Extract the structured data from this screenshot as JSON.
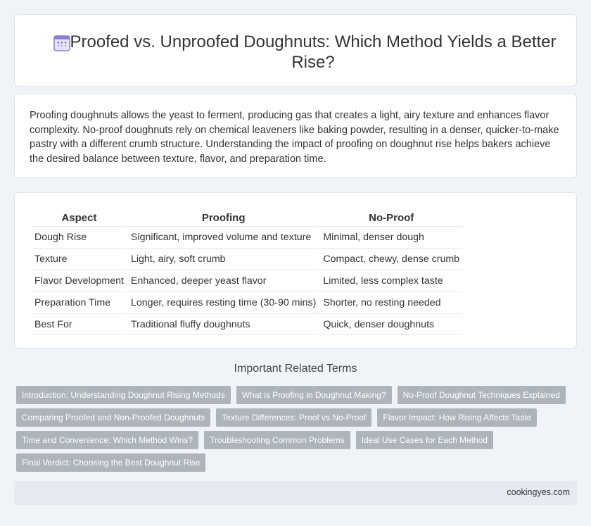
{
  "header": {
    "title": "Proofed vs. Unproofed Doughnuts: Which Method Yields a Better Rise?",
    "icon": "calendar-icon"
  },
  "intro": {
    "text": "Proofing doughnuts allows the yeast to ferment, producing gas that creates a light, airy texture and enhances flavor complexity. No-proof doughnuts rely on chemical leaveners like baking powder, resulting in a denser, quicker-to-make pastry with a different crumb structure. Understanding the impact of proofing on doughnut rise helps bakers achieve the desired balance between texture, flavor, and preparation time."
  },
  "table": {
    "headers": [
      "Aspect",
      "Proofing",
      "No-Proof"
    ],
    "rows": [
      [
        "Dough Rise",
        "Significant, improved volume and texture",
        "Minimal, denser dough"
      ],
      [
        "Texture",
        "Light, airy, soft crumb",
        "Compact, chewy, dense crumb"
      ],
      [
        "Flavor Development",
        "Enhanced, deeper yeast flavor",
        "Limited, less complex taste"
      ],
      [
        "Preparation Time",
        "Longer, requires resting time (30-90 mins)",
        "Shorter, no resting needed"
      ],
      [
        "Best For",
        "Traditional fluffy doughnuts",
        "Quick, denser doughnuts"
      ]
    ]
  },
  "related": {
    "title": "Important Related Terms",
    "tags": [
      "Introduction: Understanding Doughnut Rising Methods",
      "What is Proofing in Doughnut Making?",
      "No-Proof Doughnut Techniques Explained",
      "Comparing Proofed and Non-Proofed Doughnuts",
      "Texture Differences: Proof vs No-Proof",
      "Flavor Impact: How Rising Affects Taste",
      "Time and Convenience: Which Method Wins?",
      "Troubleshooting Common Problems",
      "Ideal Use Cases for Each Method",
      "Final Verdict: Choosing the Best Doughnut Rise"
    ]
  },
  "footer": {
    "source": "cookingyes.com"
  },
  "colors": {
    "page_bg": "#f0f3f8",
    "card_bg": "#ffffff",
    "tag_bg": "#aeb4bc",
    "footer_bg": "#e6ebf3",
    "icon_accent": "#8a7fd6"
  }
}
